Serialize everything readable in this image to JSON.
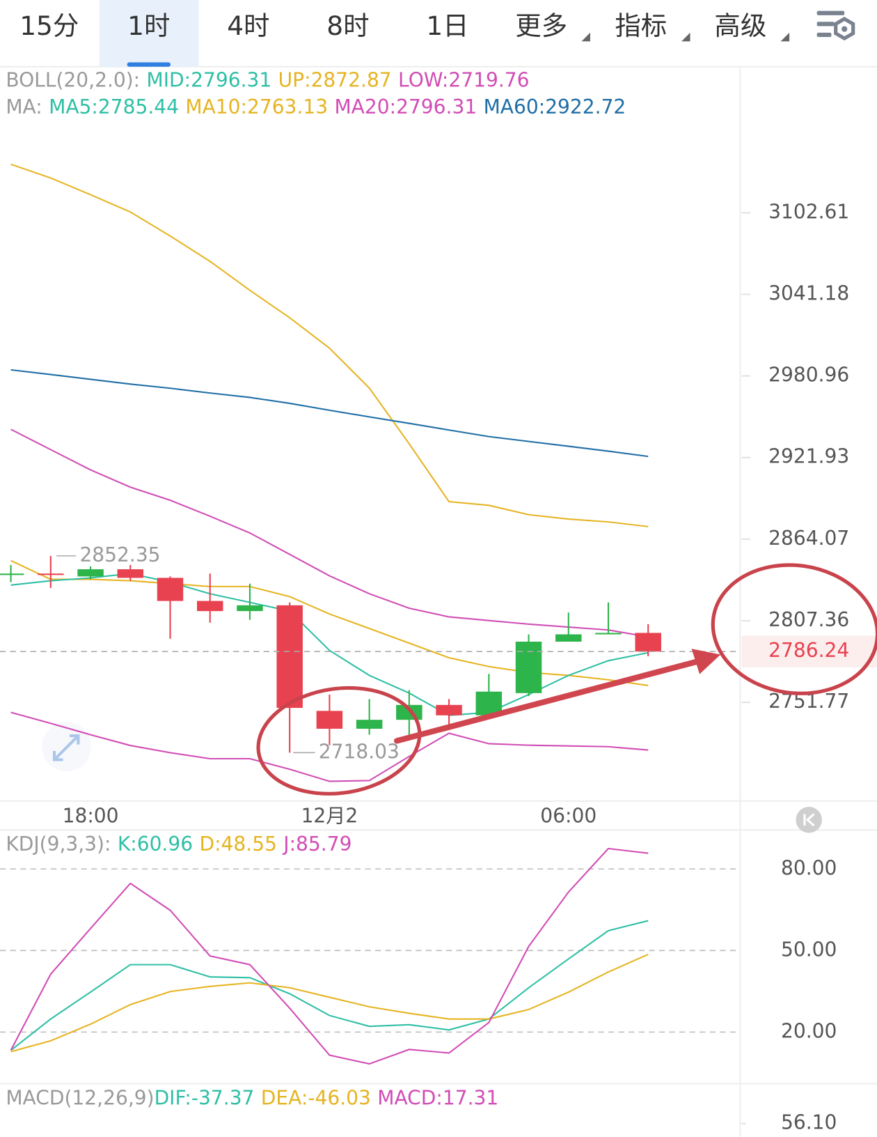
{
  "tabs": {
    "items": [
      "15分",
      "1时",
      "4时",
      "8时",
      "1日",
      "更多",
      "指标",
      "高级"
    ],
    "active": 1
  },
  "chart_data": [
    {
      "type": "candlestick",
      "log": true,
      "legends": [
        {
          "name": "BOLL(20,2.0):",
          "items": [
            {
              "label": "MID:",
              "value": 2796.31,
              "color": "#2fbfa5"
            },
            {
              "label": "UP:",
              "value": 2872.87,
              "color": "#e6b422"
            },
            {
              "label": "LOW:",
              "value": 2719.76,
              "color": "#d14db5"
            }
          ]
        },
        {
          "name": "MA:",
          "items": [
            {
              "label": "MA5:",
              "value": 2785.44,
              "color": "#2fbfa5"
            },
            {
              "label": "MA10:",
              "value": 2763.13,
              "color": "#e6b422"
            },
            {
              "label": "MA20:",
              "value": 2796.31,
              "color": "#d14db5"
            },
            {
              "label": "MA60:",
              "value": 2922.72,
              "color": "#1f6ea6"
            }
          ]
        }
      ],
      "categories": [
        null,
        null,
        "18:00",
        null,
        null,
        null,
        null,
        null,
        "12月2",
        null,
        null,
        null,
        null,
        null,
        "06:00",
        null,
        null
      ],
      "open": [
        2840,
        2840,
        2838,
        2843,
        2837,
        2821,
        2814,
        2818,
        2746,
        2734,
        2740,
        2750,
        2743,
        2758,
        2793,
        2798,
        2799
      ],
      "high": [
        2846,
        2852.35,
        2845,
        2846,
        2838,
        2840,
        2833,
        2820,
        2757,
        2754,
        2760,
        2754,
        2771,
        2798,
        2813,
        2820,
        2805
      ],
      "low": [
        2834,
        2830,
        2836,
        2835,
        2795,
        2806,
        2808,
        2718.03,
        2723,
        2730,
        2728,
        2736,
        2743,
        2756,
        2793,
        2798,
        2783
      ],
      "close": [
        2840,
        2839,
        2843,
        2837,
        2821,
        2814,
        2818,
        2748,
        2734,
        2740,
        2750,
        2743,
        2759,
        2793,
        2798,
        2799,
        2786.24
      ],
      "up_color": "#2db44a",
      "down_color": "#e8414f",
      "series": [
        {
          "color": "#e6b422",
          "values": [
            3139.7,
            3129.2,
            3116.4,
            3103.2,
            3085.0,
            3065.9,
            3044.2,
            3023.8,
            3001.3,
            2972.1,
            2931.8,
            2890.5,
            2887.9,
            2881.3,
            2878.2,
            2876.2,
            2872.87
          ]
        },
        {
          "color": "#1f6ea6",
          "values": [
            2985.4,
            2982,
            2978.5,
            2975,
            2972,
            2968.5,
            2965.3,
            2961,
            2956,
            2951.2,
            2946.5,
            2941.7,
            2937.0,
            2933.5,
            2930,
            2926.5,
            2922.72
          ]
        },
        {
          "color": "#d14db5",
          "values": [
            2942.2,
            2927.6,
            2913.1,
            2900.8,
            2891.5,
            2880.2,
            2868.4,
            2853.4,
            2838.4,
            2826,
            2816,
            2810,
            2807.5,
            2805,
            2803,
            2801,
            2796.31
          ]
        },
        {
          "color": "#d14db5",
          "values": [
            2745,
            2737.6,
            2730,
            2722.8,
            2718,
            2714,
            2714,
            2707,
            2699,
            2699.5,
            2715.5,
            2731,
            2724,
            2723,
            2722.5,
            2722,
            2719.76
          ]
        },
        {
          "color": "#e6b422",
          "values": [
            2849,
            2836,
            2836,
            2835,
            2833,
            2831,
            2831,
            2824,
            2812,
            2802,
            2792,
            2782,
            2776,
            2772,
            2770,
            2767,
            2763.13
          ]
        },
        {
          "color": "#2fbfa5",
          "values": [
            2832,
            2835,
            2837,
            2840,
            2834,
            2826,
            2820,
            2814,
            2787,
            2770,
            2758,
            2743,
            2745,
            2757,
            2770,
            2780,
            2785.44
          ]
        }
      ],
      "ylim": [
        2686,
        3214
      ],
      "yticks": [
        3102.61,
        3041.18,
        2980.96,
        2921.93,
        2864.07,
        2807.36,
        2751.77
      ],
      "max_label": 2852.35,
      "min_label": 2718.03,
      "last_price": 2786.24,
      "last_color": "#e8414f"
    },
    {
      "type": "line",
      "legends": [
        {
          "name": "KDJ(9,3,3):",
          "items": [
            {
              "label": "K:",
              "value": 60.96,
              "color": "#2fbfa5"
            },
            {
              "label": "D:",
              "value": 48.55,
              "color": "#e6b422"
            },
            {
              "label": "J:",
              "value": 85.79,
              "color": "#d14db5"
            }
          ]
        }
      ],
      "series": [
        {
          "color": "#2fbfa5",
          "values": [
            13.3,
            24.8,
            34.7,
            44.8,
            44.8,
            40.3,
            40,
            34.1,
            26.1,
            22.1,
            22.7,
            20.8,
            24.8,
            36.3,
            46.9,
            57.3,
            60.96
          ]
        },
        {
          "color": "#e6b422",
          "values": [
            12.8,
            16.8,
            22.9,
            30.1,
            34.9,
            36.8,
            38.1,
            36.3,
            32.8,
            29.3,
            26.9,
            24.8,
            24.8,
            28.3,
            34.7,
            42.1,
            48.55
          ]
        },
        {
          "color": "#d14db5",
          "values": [
            13.3,
            41.3,
            58.1,
            74.7,
            64.8,
            48,
            44.8,
            28.8,
            11.5,
            8.3,
            13.6,
            12.3,
            23.5,
            51.5,
            71.5,
            87.5,
            85.79
          ]
        }
      ],
      "ylim": [
        1,
        93
      ],
      "yticks": [
        {
          "value": 80,
          "label": "80.00"
        },
        {
          "value": 50,
          "label": "50.00"
        },
        {
          "value": 20,
          "label": "20.00"
        }
      ],
      "grid": true
    },
    {
      "type": "line",
      "legends": [
        {
          "name": "MACD(12,26,9)",
          "items": [
            {
              "label": "DIF:",
              "value": -37.37,
              "color": "#2fbfa5"
            },
            {
              "label": "DEA:",
              "value": -46.03,
              "color": "#e6b422"
            },
            {
              "label": "MACD:",
              "value": 17.31,
              "color": "#d14db5"
            }
          ]
        }
      ],
      "series": [],
      "yticks": [
        {
          "value": 56.1,
          "label": "56.10"
        }
      ]
    }
  ]
}
